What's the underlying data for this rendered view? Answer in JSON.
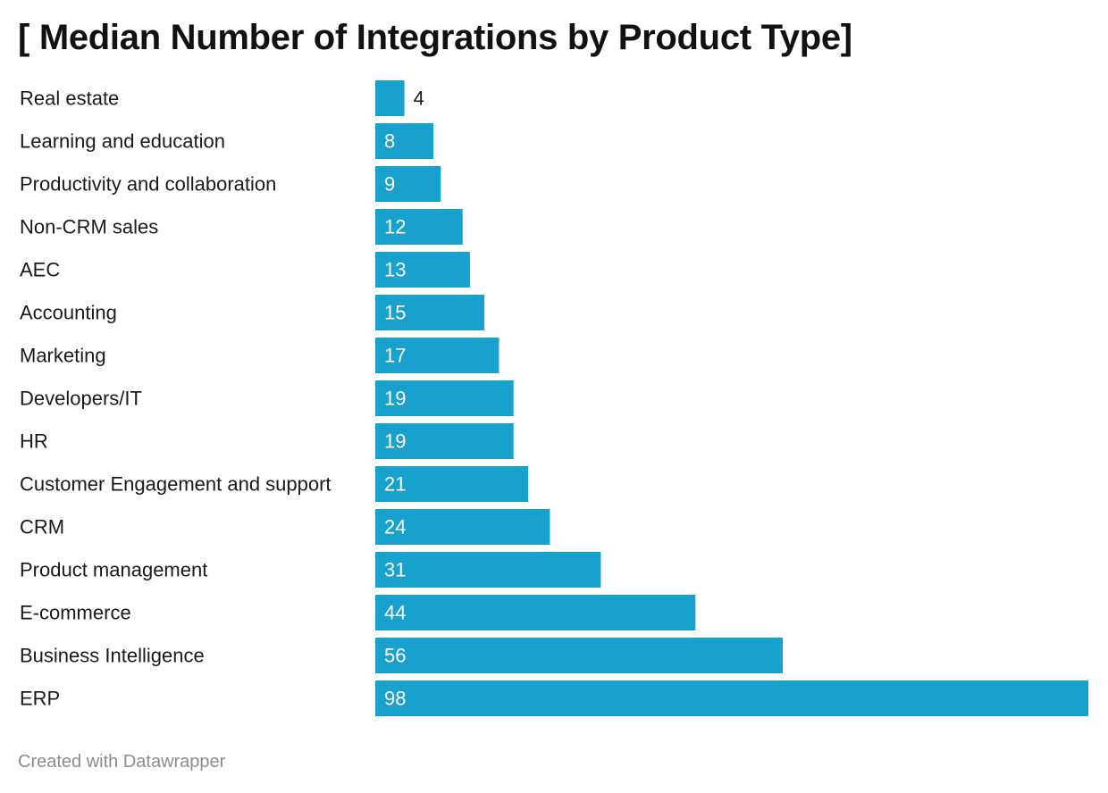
{
  "title": "[ Median Number of Integrations by Product Type]",
  "footer": "Created with Datawrapper",
  "colors": {
    "bar": "#18a1cd",
    "label_inside": "#ffffff",
    "label_outside": "#1a1a1a",
    "category_text": "#1a1a1a"
  },
  "chart_data": {
    "type": "bar",
    "orientation": "horizontal",
    "title": "[ Median Number of Integrations by Product Type]",
    "xlabel": "",
    "ylabel": "",
    "grid": false,
    "legend": "none",
    "xlim": [
      0,
      98
    ],
    "categories": [
      "Real estate",
      "Learning and education",
      "Productivity and collaboration",
      "Non-CRM sales",
      "AEC",
      "Accounting",
      "Marketing",
      "Developers/IT",
      "HR",
      "Customer Engagement and support",
      "CRM",
      "Product management",
      "E-commerce",
      "Business Intelligence",
      "ERP"
    ],
    "values": [
      4,
      8,
      9,
      12,
      13,
      15,
      17,
      19,
      19,
      21,
      24,
      31,
      44,
      56,
      98
    ]
  }
}
